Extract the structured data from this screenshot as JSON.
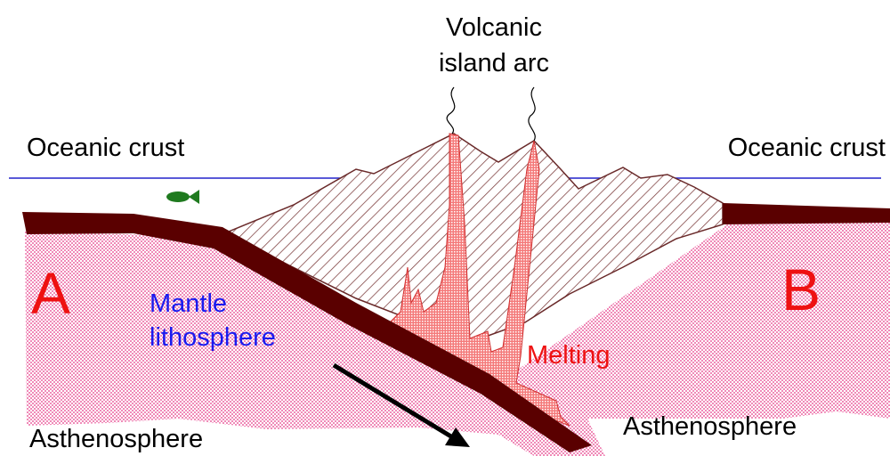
{
  "labels": {
    "volcanic_island_arc": [
      "Volcanic",
      "island arc"
    ],
    "oceanic_crust_left": "Oceanic crust",
    "oceanic_crust_right": "Oceanic crust",
    "plate_a": "A",
    "plate_b": "B",
    "mantle_lithosphere": [
      "Mantle",
      "lithosphere"
    ],
    "melting": "Melting",
    "asthenosphere_left": "Asthenosphere",
    "asthenosphere_right": "Asthenosphere"
  }
}
